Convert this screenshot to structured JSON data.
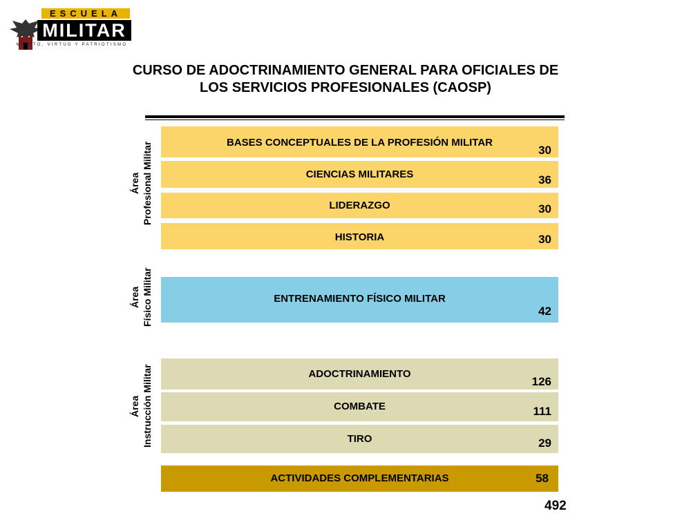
{
  "logo": {
    "top_text": "ESCUELA",
    "main_text": "MILITAR",
    "motto": "MÉRITO, VIRTUD Y PATRIOTISMO"
  },
  "title": {
    "line1": "CURSO DE ADOCTRINAMIENTO GENERAL PARA OFICIALES DE",
    "line2": "LOS SERVICIOS PROFESIONALES (CAOSP)"
  },
  "areas": {
    "profesional": "Área\nProfesional Militar",
    "fisico": "Área\nFísico Militar",
    "instruccion": "Área\nInstrucción Militar"
  },
  "courses": [
    {
      "name": "BASES CONCEPTUALES DE LA PROFESIÓN MILITAR",
      "hours": "30"
    },
    {
      "name": "CIENCIAS MILITARES",
      "hours": "36"
    },
    {
      "name": "LIDERAZGO",
      "hours": "30"
    },
    {
      "name": "HISTORIA",
      "hours": "30"
    },
    {
      "name": "ENTRENAMIENTO  FÍSICO  MILITAR",
      "hours": "42"
    },
    {
      "name": "ADOCTRINAMIENTO",
      "hours": "126"
    },
    {
      "name": "COMBATE",
      "hours": "111"
    },
    {
      "name": "TIRO",
      "hours": "29"
    },
    {
      "name": "ACTIVIDADES COMPLEMENTARIAS",
      "hours": "58"
    }
  ],
  "total": "492",
  "colors": {
    "profesional": "#fcd56a",
    "fisico": "#86cee6",
    "instruccion": "#dcd9b3",
    "complementarias": "#c99a00"
  }
}
